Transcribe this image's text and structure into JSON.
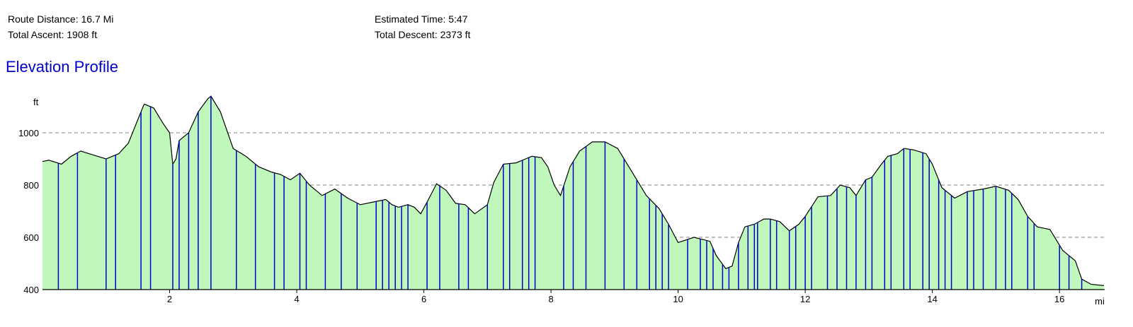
{
  "summary": {
    "route_distance": "Route Distance: 16.7 Mi",
    "total_ascent": "Total Ascent: 1908 ft",
    "estimated_time": "Estimated Time: 5:47",
    "total_descent": "Total Descent: 2373 ft"
  },
  "chart_data": {
    "type": "area",
    "title": "Elevation Profile",
    "xlabel": "mi",
    "ylabel": "ft",
    "xlim": [
      0,
      16.7
    ],
    "ylim": [
      400,
      1150
    ],
    "x_ticks": [
      2,
      4,
      6,
      8,
      10,
      12,
      14,
      16
    ],
    "y_ticks": [
      400,
      600,
      800,
      1000
    ],
    "grid": true,
    "colors": {
      "fill": "#c0f8bc",
      "line": "#000000",
      "markers": "#0000cc",
      "grid": "#808080"
    },
    "x": [
      0,
      0.1,
      0.3,
      0.45,
      0.6,
      0.8,
      1.0,
      1.2,
      1.35,
      1.5,
      1.6,
      1.75,
      1.9,
      2.0,
      2.05,
      2.1,
      2.15,
      2.3,
      2.45,
      2.6,
      2.65,
      2.8,
      3.0,
      3.2,
      3.4,
      3.6,
      3.75,
      3.9,
      4.05,
      4.2,
      4.4,
      4.6,
      4.8,
      5.0,
      5.2,
      5.4,
      5.5,
      5.6,
      5.75,
      5.85,
      5.95,
      6.05,
      6.2,
      6.35,
      6.5,
      6.65,
      6.8,
      7.0,
      7.1,
      7.25,
      7.45,
      7.6,
      7.7,
      7.85,
      7.95,
      8.05,
      8.15,
      8.3,
      8.45,
      8.65,
      8.85,
      9.05,
      9.3,
      9.5,
      9.7,
      9.85,
      10.0,
      10.25,
      10.5,
      10.6,
      10.75,
      10.85,
      10.95,
      11.05,
      11.2,
      11.35,
      11.45,
      11.6,
      11.75,
      11.9,
      12.0,
      12.2,
      12.4,
      12.55,
      12.7,
      12.8,
      12.95,
      13.05,
      13.2,
      13.3,
      13.45,
      13.55,
      13.7,
      13.9,
      14.0,
      14.15,
      14.35,
      14.55,
      14.8,
      15.0,
      15.2,
      15.35,
      15.5,
      15.65,
      15.85,
      16.05,
      16.15,
      16.25,
      16.35,
      16.5,
      16.7
    ],
    "y": [
      890,
      895,
      880,
      910,
      930,
      915,
      900,
      920,
      960,
      1050,
      1110,
      1095,
      1035,
      1000,
      880,
      900,
      970,
      1000,
      1080,
      1130,
      1140,
      1080,
      940,
      910,
      870,
      850,
      840,
      820,
      845,
      800,
      760,
      785,
      750,
      725,
      735,
      745,
      725,
      715,
      725,
      715,
      690,
      735,
      805,
      780,
      730,
      725,
      690,
      725,
      810,
      880,
      885,
      900,
      910,
      905,
      870,
      800,
      760,
      870,
      930,
      965,
      965,
      940,
      840,
      760,
      710,
      650,
      580,
      600,
      585,
      530,
      480,
      490,
      580,
      640,
      650,
      670,
      670,
      660,
      625,
      650,
      680,
      755,
      760,
      800,
      790,
      760,
      820,
      830,
      880,
      910,
      920,
      940,
      935,
      920,
      880,
      790,
      750,
      775,
      785,
      795,
      780,
      745,
      680,
      640,
      630,
      550,
      530,
      510,
      440,
      420,
      415
    ],
    "marker_x": [
      0.25,
      0.55,
      1.0,
      1.15,
      1.55,
      1.7,
      2.05,
      2.15,
      2.3,
      2.45,
      2.65,
      3.05,
      3.35,
      3.65,
      3.8,
      4.05,
      4.15,
      4.45,
      4.7,
      4.95,
      5.25,
      5.35,
      5.45,
      5.55,
      5.65,
      5.75,
      6.05,
      6.25,
      6.55,
      6.7,
      7.0,
      7.25,
      7.35,
      7.55,
      7.65,
      7.75,
      8.2,
      8.35,
      8.55,
      8.85,
      9.15,
      9.35,
      9.55,
      9.65,
      9.75,
      9.85,
      10.15,
      10.35,
      10.45,
      10.55,
      10.7,
      10.8,
      10.95,
      11.1,
      11.2,
      11.25,
      11.45,
      11.55,
      11.75,
      11.85,
      12.0,
      12.1,
      12.35,
      12.5,
      12.65,
      12.8,
      12.95,
      13.05,
      13.25,
      13.35,
      13.55,
      13.65,
      13.85,
      13.95,
      14.1,
      14.2,
      14.3,
      14.55,
      14.65,
      14.8,
      15.0,
      15.15,
      15.25,
      15.5,
      15.6,
      16.0,
      16.15,
      16.35
    ]
  }
}
